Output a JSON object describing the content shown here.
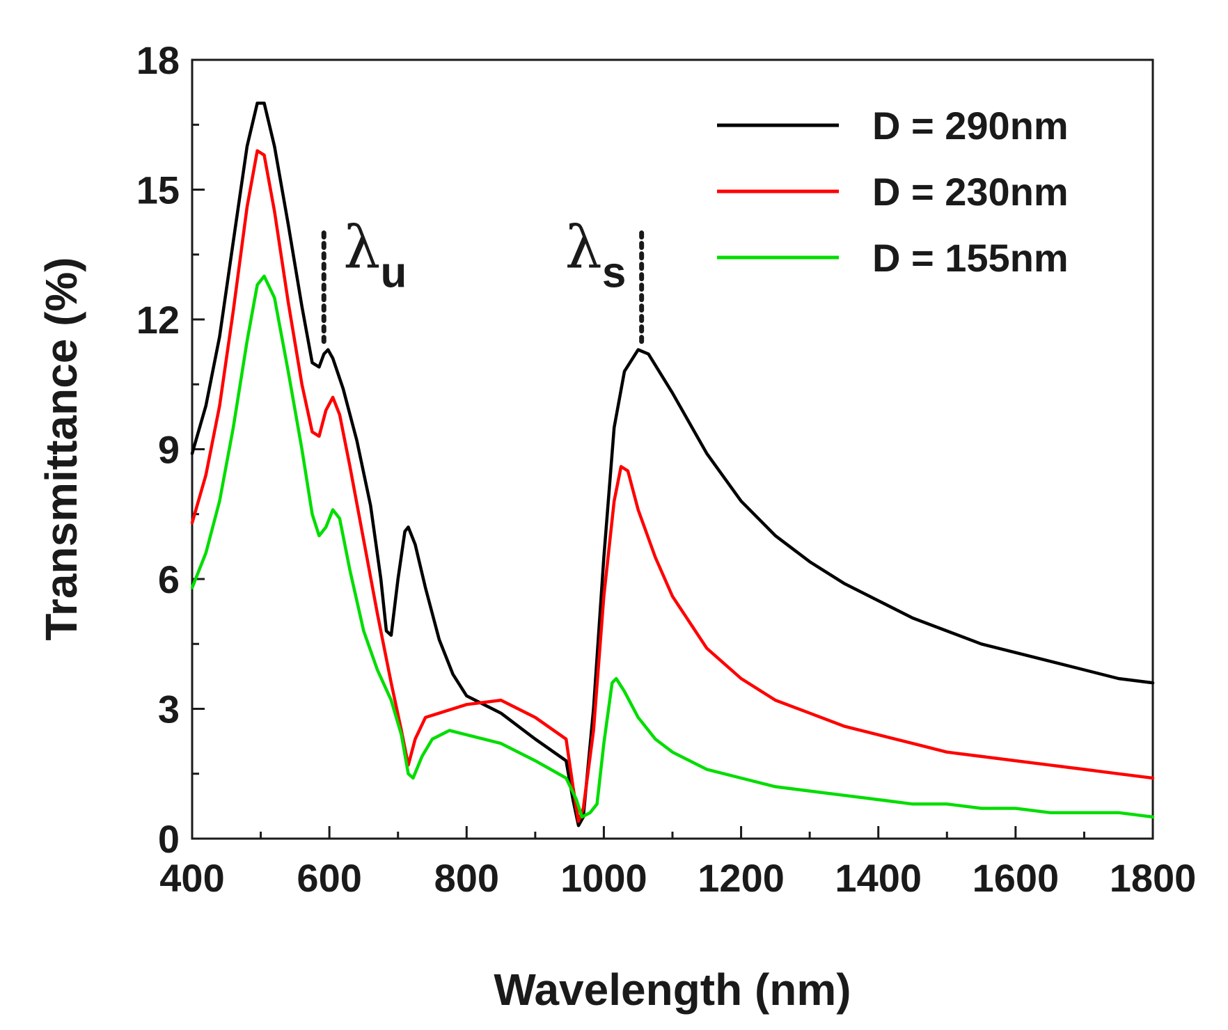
{
  "chart_data": {
    "type": "line",
    "title": "",
    "xlabel": "Wavelength (nm)",
    "ylabel": "Transmittance (%)",
    "xlim": [
      400,
      1800
    ],
    "ylim": [
      0,
      18
    ],
    "xticks": [
      400,
      600,
      800,
      1000,
      1200,
      1400,
      1600,
      1800
    ],
    "yticks": [
      0,
      3,
      6,
      9,
      12,
      15,
      18
    ],
    "xtick_labels": [
      "400",
      "600",
      "800",
      "1000",
      "1200",
      "1400",
      "1600",
      "1800"
    ],
    "ytick_labels": [
      "0",
      "3",
      "6",
      "9",
      "12",
      "15",
      "18"
    ],
    "grid": false,
    "legend_position": "top-right",
    "series": [
      {
        "name": "D = 290nm",
        "color": "#000000",
        "points": [
          [
            400,
            8.9
          ],
          [
            420,
            10.0
          ],
          [
            440,
            11.6
          ],
          [
            460,
            13.8
          ],
          [
            480,
            16.0
          ],
          [
            495,
            17.0
          ],
          [
            505,
            17.0
          ],
          [
            520,
            16.0
          ],
          [
            540,
            14.2
          ],
          [
            560,
            12.3
          ],
          [
            575,
            11.0
          ],
          [
            585,
            10.9
          ],
          [
            592,
            11.2
          ],
          [
            598,
            11.3
          ],
          [
            605,
            11.1
          ],
          [
            620,
            10.4
          ],
          [
            640,
            9.2
          ],
          [
            660,
            7.7
          ],
          [
            675,
            6.0
          ],
          [
            683,
            4.8
          ],
          [
            690,
            4.7
          ],
          [
            700,
            6.0
          ],
          [
            710,
            7.1
          ],
          [
            715,
            7.2
          ],
          [
            725,
            6.8
          ],
          [
            740,
            5.8
          ],
          [
            760,
            4.6
          ],
          [
            780,
            3.8
          ],
          [
            800,
            3.3
          ],
          [
            850,
            2.9
          ],
          [
            900,
            2.3
          ],
          [
            945,
            1.8
          ],
          [
            955,
            0.9
          ],
          [
            963,
            0.3
          ],
          [
            970,
            0.5
          ],
          [
            985,
            3.0
          ],
          [
            1000,
            6.5
          ],
          [
            1015,
            9.5
          ],
          [
            1030,
            10.8
          ],
          [
            1050,
            11.3
          ],
          [
            1065,
            11.2
          ],
          [
            1100,
            10.3
          ],
          [
            1150,
            8.9
          ],
          [
            1200,
            7.8
          ],
          [
            1250,
            7.0
          ],
          [
            1300,
            6.4
          ],
          [
            1350,
            5.9
          ],
          [
            1400,
            5.5
          ],
          [
            1450,
            5.1
          ],
          [
            1500,
            4.8
          ],
          [
            1550,
            4.5
          ],
          [
            1600,
            4.3
          ],
          [
            1650,
            4.1
          ],
          [
            1700,
            3.9
          ],
          [
            1750,
            3.7
          ],
          [
            1800,
            3.6
          ]
        ]
      },
      {
        "name": "D = 230nm",
        "color": "#ff0000",
        "points": [
          [
            400,
            7.3
          ],
          [
            420,
            8.4
          ],
          [
            440,
            10.0
          ],
          [
            460,
            12.2
          ],
          [
            480,
            14.6
          ],
          [
            495,
            15.9
          ],
          [
            505,
            15.8
          ],
          [
            520,
            14.5
          ],
          [
            540,
            12.4
          ],
          [
            560,
            10.5
          ],
          [
            575,
            9.4
          ],
          [
            585,
            9.3
          ],
          [
            595,
            9.9
          ],
          [
            605,
            10.2
          ],
          [
            615,
            9.8
          ],
          [
            630,
            8.6
          ],
          [
            650,
            6.9
          ],
          [
            670,
            5.2
          ],
          [
            690,
            3.6
          ],
          [
            705,
            2.5
          ],
          [
            715,
            1.7
          ],
          [
            725,
            2.3
          ],
          [
            740,
            2.8
          ],
          [
            760,
            2.9
          ],
          [
            800,
            3.1
          ],
          [
            850,
            3.2
          ],
          [
            900,
            2.8
          ],
          [
            945,
            2.3
          ],
          [
            955,
            1.2
          ],
          [
            963,
            0.4
          ],
          [
            970,
            0.7
          ],
          [
            985,
            2.5
          ],
          [
            1000,
            5.6
          ],
          [
            1015,
            7.8
          ],
          [
            1025,
            8.6
          ],
          [
            1035,
            8.5
          ],
          [
            1050,
            7.6
          ],
          [
            1075,
            6.5
          ],
          [
            1100,
            5.6
          ],
          [
            1150,
            4.4
          ],
          [
            1200,
            3.7
          ],
          [
            1250,
            3.2
          ],
          [
            1300,
            2.9
          ],
          [
            1350,
            2.6
          ],
          [
            1400,
            2.4
          ],
          [
            1450,
            2.2
          ],
          [
            1500,
            2.0
          ],
          [
            1550,
            1.9
          ],
          [
            1600,
            1.8
          ],
          [
            1650,
            1.7
          ],
          [
            1700,
            1.6
          ],
          [
            1750,
            1.5
          ],
          [
            1800,
            1.4
          ]
        ]
      },
      {
        "name": "D = 155nm",
        "color": "#00dd00",
        "points": [
          [
            400,
            5.8
          ],
          [
            420,
            6.6
          ],
          [
            440,
            7.8
          ],
          [
            460,
            9.5
          ],
          [
            480,
            11.5
          ],
          [
            495,
            12.8
          ],
          [
            505,
            13.0
          ],
          [
            520,
            12.5
          ],
          [
            540,
            10.8
          ],
          [
            560,
            9.0
          ],
          [
            575,
            7.5
          ],
          [
            585,
            7.0
          ],
          [
            595,
            7.2
          ],
          [
            605,
            7.6
          ],
          [
            615,
            7.4
          ],
          [
            630,
            6.2
          ],
          [
            650,
            4.8
          ],
          [
            670,
            3.9
          ],
          [
            690,
            3.2
          ],
          [
            705,
            2.4
          ],
          [
            715,
            1.5
          ],
          [
            722,
            1.4
          ],
          [
            735,
            1.9
          ],
          [
            750,
            2.3
          ],
          [
            775,
            2.5
          ],
          [
            800,
            2.4
          ],
          [
            850,
            2.2
          ],
          [
            900,
            1.8
          ],
          [
            945,
            1.4
          ],
          [
            960,
            0.9
          ],
          [
            968,
            0.5
          ],
          [
            980,
            0.6
          ],
          [
            990,
            0.8
          ],
          [
            1000,
            2.2
          ],
          [
            1012,
            3.6
          ],
          [
            1018,
            3.7
          ],
          [
            1030,
            3.4
          ],
          [
            1050,
            2.8
          ],
          [
            1075,
            2.3
          ],
          [
            1100,
            2.0
          ],
          [
            1150,
            1.6
          ],
          [
            1200,
            1.4
          ],
          [
            1250,
            1.2
          ],
          [
            1300,
            1.1
          ],
          [
            1350,
            1.0
          ],
          [
            1400,
            0.9
          ],
          [
            1450,
            0.8
          ],
          [
            1500,
            0.8
          ],
          [
            1550,
            0.7
          ],
          [
            1600,
            0.7
          ],
          [
            1650,
            0.6
          ],
          [
            1700,
            0.6
          ],
          [
            1750,
            0.6
          ],
          [
            1800,
            0.5
          ]
        ]
      }
    ],
    "annotations": [
      {
        "id": "lambda_u",
        "symbol": "λ",
        "subscript": "u",
        "x": 592,
        "y_from": 11.4,
        "y_to": 14.0
      },
      {
        "id": "lambda_s",
        "symbol": "λ",
        "subscript": "s",
        "x": 1055,
        "y_from": 11.4,
        "y_to": 14.0
      }
    ]
  }
}
